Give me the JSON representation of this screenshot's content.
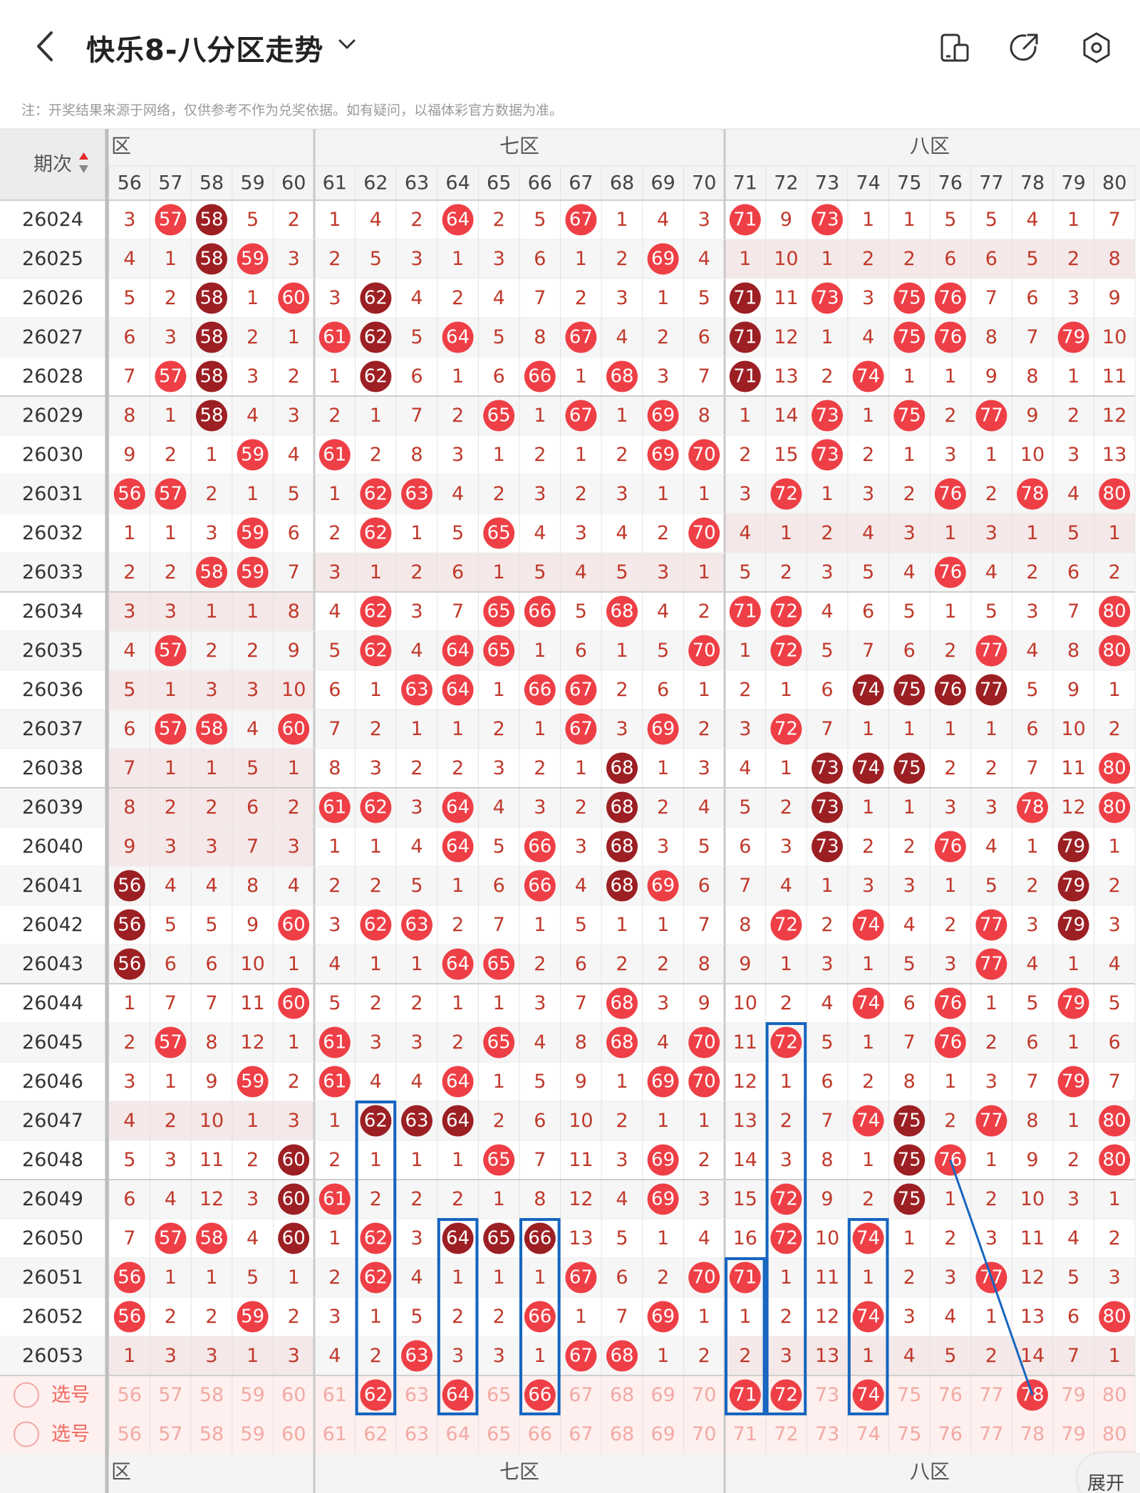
{
  "header": {
    "title": "快乐8-八分区走势",
    "notice": "注：开奖结果来源于网络，仅供参考不作为兑奖依据。如有疑问，以福体彩官方数据为准。"
  },
  "table": {
    "period_header": "期次",
    "zones": [
      {
        "label": "六区",
        "shown_label": "区"
      },
      {
        "label": "七区"
      },
      {
        "label": "八区"
      }
    ],
    "columns": [
      56,
      57,
      58,
      59,
      60,
      61,
      62,
      63,
      64,
      65,
      66,
      67,
      68,
      69,
      70,
      71,
      72,
      73,
      74,
      75,
      76,
      77,
      78,
      79,
      80
    ],
    "rows": [
      {
        "period": "26024",
        "cells": [
          "3",
          "57h",
          "58d",
          "5",
          "2",
          "1",
          "4",
          "2",
          "64h",
          "2",
          "5",
          "67h",
          "1",
          "4",
          "3",
          "71h",
          "9",
          "73h",
          "1",
          "1",
          "5",
          "5",
          "4",
          "1",
          "7"
        ]
      },
      {
        "period": "26025",
        "cells": [
          "4",
          "1",
          "58d",
          "59h",
          "3",
          "2",
          "5",
          "3",
          "1",
          "3",
          "6",
          "1",
          "2",
          "69h",
          "4",
          "1",
          "10",
          "1",
          "2",
          "2",
          "6",
          "6",
          "5",
          "2",
          "8"
        ]
      },
      {
        "period": "26026",
        "cells": [
          "5",
          "2",
          "58d",
          "1",
          "60h",
          "3",
          "62d",
          "4",
          "2",
          "4",
          "7",
          "2",
          "3",
          "1",
          "5",
          "71d",
          "11",
          "73h",
          "3",
          "75h",
          "76h",
          "7",
          "6",
          "3",
          "9"
        ]
      },
      {
        "period": "26027",
        "cells": [
          "6",
          "3",
          "58d",
          "2",
          "1",
          "61h",
          "62d",
          "5",
          "64h",
          "5",
          "8",
          "67h",
          "4",
          "2",
          "6",
          "71d",
          "12",
          "1",
          "4",
          "75h",
          "76h",
          "8",
          "7",
          "79h",
          "10"
        ]
      },
      {
        "period": "26028",
        "cells": [
          "7",
          "57h",
          "58d",
          "3",
          "2",
          "1",
          "62d",
          "6",
          "1",
          "6",
          "66h",
          "1",
          "68h",
          "3",
          "7",
          "71d",
          "13",
          "2",
          "74h",
          "1",
          "1",
          "9",
          "8",
          "1",
          "11"
        ]
      },
      {
        "period": "26029",
        "cells": [
          "8",
          "1",
          "58d",
          "4",
          "3",
          "2",
          "1",
          "7",
          "2",
          "65h",
          "1",
          "67h",
          "1",
          "69h",
          "8",
          "1",
          "14",
          "73h",
          "1",
          "75h",
          "2",
          "77h",
          "9",
          "2",
          "12"
        ]
      },
      {
        "period": "26030",
        "cells": [
          "9",
          "2",
          "1",
          "59h",
          "4",
          "61h",
          "2",
          "8",
          "3",
          "1",
          "2",
          "1",
          "2",
          "69h",
          "70h",
          "2",
          "15",
          "73h",
          "2",
          "1",
          "3",
          "1",
          "10",
          "3",
          "13"
        ]
      },
      {
        "period": "26031",
        "cells": [
          "56h",
          "57h",
          "2",
          "1",
          "5",
          "1",
          "62h",
          "63h",
          "4",
          "2",
          "3",
          "2",
          "3",
          "1",
          "1",
          "3",
          "72h",
          "1",
          "3",
          "2",
          "76h",
          "2",
          "78h",
          "4",
          "80h"
        ]
      },
      {
        "period": "26032",
        "cells": [
          "1",
          "1",
          "3",
          "59h",
          "6",
          "2",
          "62h",
          "1",
          "5",
          "65h",
          "4",
          "3",
          "4",
          "2",
          "70h",
          "4",
          "1",
          "2",
          "4",
          "3",
          "1",
          "3",
          "1",
          "5",
          "1"
        ]
      },
      {
        "period": "26033",
        "cells": [
          "2",
          "2",
          "58h",
          "59h",
          "7",
          "3",
          "1",
          "2",
          "6",
          "1",
          "5",
          "4",
          "5",
          "3",
          "1",
          "5",
          "2",
          "3",
          "5",
          "4",
          "76h",
          "4",
          "2",
          "6",
          "2"
        ]
      },
      {
        "period": "26034",
        "cells": [
          "3",
          "3",
          "1",
          "1",
          "8",
          "4",
          "62h",
          "3",
          "7",
          "65h",
          "66h",
          "5",
          "68h",
          "4",
          "2",
          "71h",
          "72h",
          "4",
          "6",
          "5",
          "1",
          "5",
          "3",
          "7",
          "80h"
        ]
      },
      {
        "period": "26035",
        "cells": [
          "4",
          "57h",
          "2",
          "2",
          "9",
          "5",
          "62h",
          "4",
          "64h",
          "65h",
          "1",
          "6",
          "1",
          "5",
          "70h",
          "1",
          "72h",
          "5",
          "7",
          "6",
          "2",
          "77h",
          "4",
          "8",
          "80h"
        ]
      },
      {
        "period": "26036",
        "cells": [
          "5",
          "1",
          "3",
          "3",
          "10",
          "6",
          "1",
          "63h",
          "64h",
          "1",
          "66h",
          "67h",
          "2",
          "6",
          "1",
          "2",
          "1",
          "6",
          "74d",
          "75d",
          "76d",
          "77d",
          "5",
          "9",
          "1"
        ]
      },
      {
        "period": "26037",
        "cells": [
          "6",
          "57h",
          "58h",
          "4",
          "60h",
          "7",
          "2",
          "1",
          "1",
          "2",
          "1",
          "67h",
          "3",
          "69h",
          "2",
          "3",
          "72h",
          "7",
          "1",
          "1",
          "1",
          "1",
          "6",
          "10",
          "2"
        ]
      },
      {
        "period": "26038",
        "cells": [
          "7",
          "1",
          "1",
          "5",
          "1",
          "8",
          "3",
          "2",
          "2",
          "3",
          "2",
          "1",
          "68d",
          "1",
          "3",
          "4",
          "1",
          "73d",
          "74d",
          "75d",
          "2",
          "2",
          "7",
          "11",
          "80h"
        ]
      },
      {
        "period": "26039",
        "cells": [
          "8",
          "2",
          "2",
          "6",
          "2",
          "61h",
          "62h",
          "3",
          "64h",
          "4",
          "3",
          "2",
          "68d",
          "2",
          "4",
          "5",
          "2",
          "73d",
          "1",
          "1",
          "3",
          "3",
          "78h",
          "12",
          "80h"
        ]
      },
      {
        "period": "26040",
        "cells": [
          "9",
          "3",
          "3",
          "7",
          "3",
          "1",
          "1",
          "4",
          "64h",
          "5",
          "66h",
          "3",
          "68d",
          "3",
          "5",
          "6",
          "3",
          "73d",
          "2",
          "2",
          "76h",
          "4",
          "1",
          "79d",
          "1"
        ]
      },
      {
        "period": "26041",
        "cells": [
          "56d",
          "4",
          "4",
          "8",
          "4",
          "2",
          "2",
          "5",
          "1",
          "6",
          "66h",
          "4",
          "68d",
          "69h",
          "6",
          "7",
          "4",
          "1",
          "3",
          "3",
          "1",
          "5",
          "2",
          "79d",
          "2"
        ]
      },
      {
        "period": "26042",
        "cells": [
          "56d",
          "5",
          "5",
          "9",
          "60h",
          "3",
          "62h",
          "63h",
          "2",
          "7",
          "1",
          "5",
          "1",
          "1",
          "7",
          "8",
          "72h",
          "2",
          "74h",
          "4",
          "2",
          "77h",
          "3",
          "79d",
          "3"
        ]
      },
      {
        "period": "26043",
        "cells": [
          "56d",
          "6",
          "6",
          "10",
          "1",
          "4",
          "1",
          "1",
          "64h",
          "65h",
          "2",
          "6",
          "2",
          "2",
          "8",
          "9",
          "1",
          "3",
          "1",
          "5",
          "3",
          "77h",
          "4",
          "1",
          "4"
        ]
      },
      {
        "period": "26044",
        "cells": [
          "1",
          "7",
          "7",
          "11",
          "60h",
          "5",
          "2",
          "2",
          "1",
          "1",
          "3",
          "7",
          "68h",
          "3",
          "9",
          "10",
          "2",
          "4",
          "74h",
          "6",
          "76h",
          "1",
          "5",
          "79h",
          "5"
        ]
      },
      {
        "period": "26045",
        "cells": [
          "2",
          "57h",
          "8",
          "12",
          "1",
          "61h",
          "3",
          "3",
          "2",
          "65h",
          "4",
          "8",
          "68h",
          "4",
          "70h",
          "11",
          "72h",
          "5",
          "1",
          "7",
          "76h",
          "2",
          "6",
          "1",
          "6"
        ]
      },
      {
        "period": "26046",
        "cells": [
          "3",
          "1",
          "9",
          "59h",
          "2",
          "61h",
          "4",
          "4",
          "64h",
          "1",
          "5",
          "9",
          "1",
          "69h",
          "70h",
          "12",
          "1",
          "6",
          "2",
          "8",
          "1",
          "3",
          "7",
          "79h",
          "7"
        ]
      },
      {
        "period": "26047",
        "cells": [
          "4",
          "2",
          "10",
          "1",
          "3",
          "1",
          "62d",
          "63d",
          "64d",
          "2",
          "6",
          "10",
          "2",
          "1",
          "1",
          "13",
          "2",
          "7",
          "74h",
          "75d",
          "2",
          "77h",
          "8",
          "1",
          "80h"
        ]
      },
      {
        "period": "26048",
        "cells": [
          "5",
          "3",
          "11",
          "2",
          "60d",
          "2",
          "1",
          "1",
          "1",
          "65h",
          "7",
          "11",
          "3",
          "69h",
          "2",
          "14",
          "3",
          "8",
          "1",
          "75d",
          "76h",
          "1",
          "9",
          "2",
          "80h"
        ]
      },
      {
        "period": "26049",
        "cells": [
          "6",
          "4",
          "12",
          "3",
          "60d",
          "61h",
          "2",
          "2",
          "2",
          "1",
          "8",
          "12",
          "4",
          "69h",
          "3",
          "15",
          "72h",
          "9",
          "2",
          "75d",
          "1",
          "2",
          "10",
          "3",
          "1"
        ]
      },
      {
        "period": "26050",
        "cells": [
          "7",
          "57h",
          "58h",
          "4",
          "60d",
          "1",
          "62h",
          "3",
          "64d",
          "65d",
          "66d",
          "13",
          "5",
          "1",
          "4",
          "16",
          "72h",
          "10",
          "74h",
          "1",
          "2",
          "3",
          "11",
          "4",
          "2"
        ]
      },
      {
        "period": "26051",
        "cells": [
          "56h",
          "1",
          "1",
          "5",
          "1",
          "2",
          "62h",
          "4",
          "1",
          "1",
          "1",
          "67h",
          "6",
          "2",
          "70h",
          "71h",
          "1",
          "11",
          "1",
          "2",
          "3",
          "77h",
          "12",
          "5",
          "3"
        ]
      },
      {
        "period": "26052",
        "cells": [
          "56h",
          "2",
          "2",
          "59h",
          "2",
          "3",
          "1",
          "5",
          "2",
          "2",
          "66h",
          "1",
          "7",
          "69h",
          "1",
          "1",
          "2",
          "12",
          "74h",
          "3",
          "4",
          "1",
          "13",
          "6",
          "80h"
        ]
      },
      {
        "period": "26053",
        "cells": [
          "1",
          "3",
          "3",
          "1",
          "3",
          "4",
          "2",
          "63h",
          "3",
          "3",
          "1",
          "67h",
          "68h",
          "1",
          "2",
          "2",
          "3",
          "13",
          "1",
          "4",
          "5",
          "2",
          "14",
          "7",
          "1"
        ]
      }
    ],
    "select_rows": [
      {
        "label": "选号",
        "highlights": [
          62,
          64,
          66,
          71,
          72,
          74,
          78
        ]
      },
      {
        "label": "选号",
        "highlights": []
      }
    ],
    "expand_label": "展开"
  },
  "colors": {
    "hit": "#ee3f46",
    "hit_dark": "#9c1f23",
    "miss_text": "#c0392b",
    "annotation": "#1565c0",
    "band_pink": "#f5e8e8",
    "band_gray": "#f3f3f3"
  }
}
